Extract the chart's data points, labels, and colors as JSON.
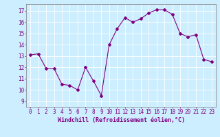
{
  "x": [
    0,
    1,
    2,
    3,
    4,
    5,
    6,
    7,
    8,
    9,
    10,
    11,
    12,
    13,
    14,
    15,
    16,
    17,
    18,
    19,
    20,
    21,
    22,
    23
  ],
  "y": [
    13.1,
    13.2,
    11.9,
    11.9,
    10.5,
    10.4,
    10.0,
    12.0,
    10.8,
    9.5,
    14.0,
    15.4,
    16.4,
    16.0,
    16.3,
    16.8,
    17.1,
    17.1,
    16.7,
    15.0,
    14.7,
    14.9,
    12.7,
    12.5
  ],
  "line_color": "#800080",
  "marker": "D",
  "marker_size": 2,
  "bg_color": "#cceeff",
  "grid_color": "#ffffff",
  "xlabel": "Windchill (Refroidissement éolien,°C)",
  "ylim": [
    8.5,
    17.6
  ],
  "xlim": [
    -0.5,
    23.5
  ],
  "yticks": [
    9,
    10,
    11,
    12,
    13,
    14,
    15,
    16,
    17
  ],
  "xticks": [
    0,
    1,
    2,
    3,
    4,
    5,
    6,
    7,
    8,
    9,
    10,
    11,
    12,
    13,
    14,
    15,
    16,
    17,
    18,
    19,
    20,
    21,
    22,
    23
  ],
  "label_color": "#800080",
  "tick_color": "#800080",
  "axis_color": "#808080",
  "xlabel_fontsize": 6.0,
  "tick_fontsize": 5.5
}
